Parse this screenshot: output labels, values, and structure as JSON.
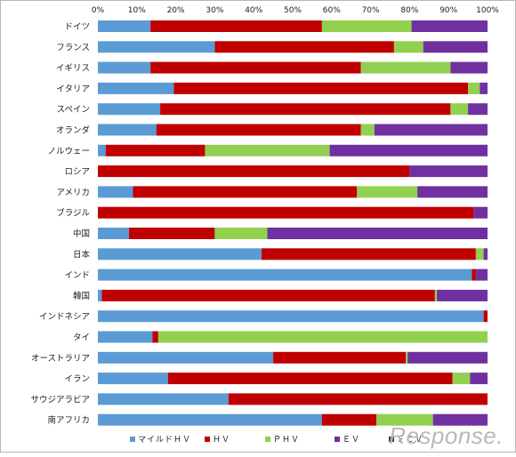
{
  "chart_data": {
    "type": "bar",
    "orientation": "horizontal",
    "stacked": true,
    "title": "",
    "xlabel": "",
    "ylabel": "",
    "xlim": [
      0,
      100
    ],
    "x_ticks": [
      "0%",
      "10%",
      "20%",
      "30%",
      "40%",
      "50%",
      "60%",
      "70%",
      "80%",
      "90%",
      "100%"
    ],
    "grid": false,
    "legend_position": "bottom",
    "categories": [
      "ドイツ",
      "フランス",
      "イギリス",
      "イタリア",
      "スペイン",
      "オランダ",
      "ノルウェー",
      "ロシア",
      "アメリカ",
      "ブラジル",
      "中国",
      "日本",
      "インド",
      "韓国",
      "インドネシア",
      "タイ",
      "オーストラリア",
      "イラン",
      "サウジアラビア",
      "南アフリカ"
    ],
    "series": [
      {
        "name": "マイルドＨＶ",
        "color": "#5b9bd5",
        "values": [
          13.5,
          30,
          13.5,
          19.5,
          16,
          15,
          2,
          0,
          9,
          0,
          8,
          42,
          96,
          1,
          99,
          14,
          45,
          18,
          33.5,
          57.5
        ]
      },
      {
        "name": "ＨＶ",
        "color": "#c00000",
        "values": [
          44,
          46,
          54,
          75.5,
          74.5,
          52.5,
          25.5,
          80,
          57.5,
          96.5,
          22,
          55,
          1,
          85.5,
          1,
          1.5,
          34,
          73,
          66.5,
          14
        ]
      },
      {
        "name": "ＰＨＶ",
        "color": "#92d050",
        "values": [
          23,
          7.5,
          23,
          3,
          4.5,
          3.5,
          32,
          0,
          15.5,
          0,
          13.5,
          2,
          0,
          0.5,
          0,
          84.5,
          0.5,
          4.5,
          0,
          14.5
        ]
      },
      {
        "name": "ＥＶ",
        "color": "#7030a0",
        "values": [
          19.5,
          16.5,
          9.5,
          2,
          5,
          29,
          40.5,
          20,
          18,
          3.5,
          56.5,
          1,
          3,
          13,
          0,
          0,
          20.5,
          4.5,
          0,
          14
        ]
      },
      {
        "name": "ＦＣＶ",
        "color": "#404040",
        "values": [
          0,
          0,
          0,
          0,
          0,
          0,
          0,
          0,
          0,
          0,
          0,
          0,
          0,
          0,
          0,
          0,
          0,
          0,
          0,
          0
        ]
      }
    ]
  },
  "watermark": "Response."
}
